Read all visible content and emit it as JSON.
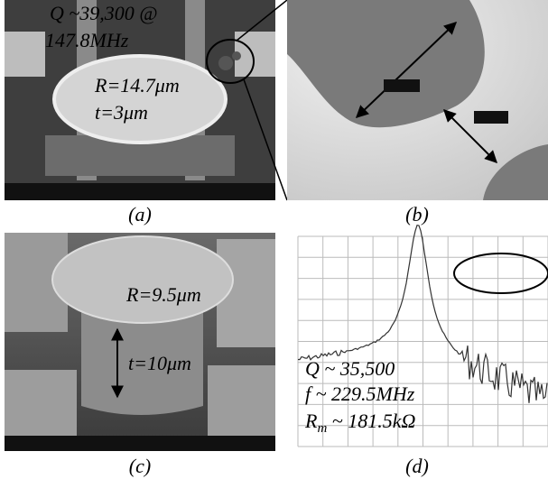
{
  "panels": [
    {
      "caption": "(a)",
      "annotations": [
        "Q ~39,300 @",
        "147.8MHz",
        "R=14.7μm",
        "t=3μm"
      ]
    },
    {
      "caption": "(b)"
    },
    {
      "caption": "(c)",
      "annotations": [
        "R=9.5μm",
        "t=10μm"
      ]
    },
    {
      "caption": "(d)",
      "annotations": [
        "Q ~ 35,500",
        "f ~ 229.5MHz"
      ],
      "rm_label": {
        "symbol": "R",
        "subscript": "m",
        "rest": " ~ 181.5kΩ"
      }
    }
  ]
}
